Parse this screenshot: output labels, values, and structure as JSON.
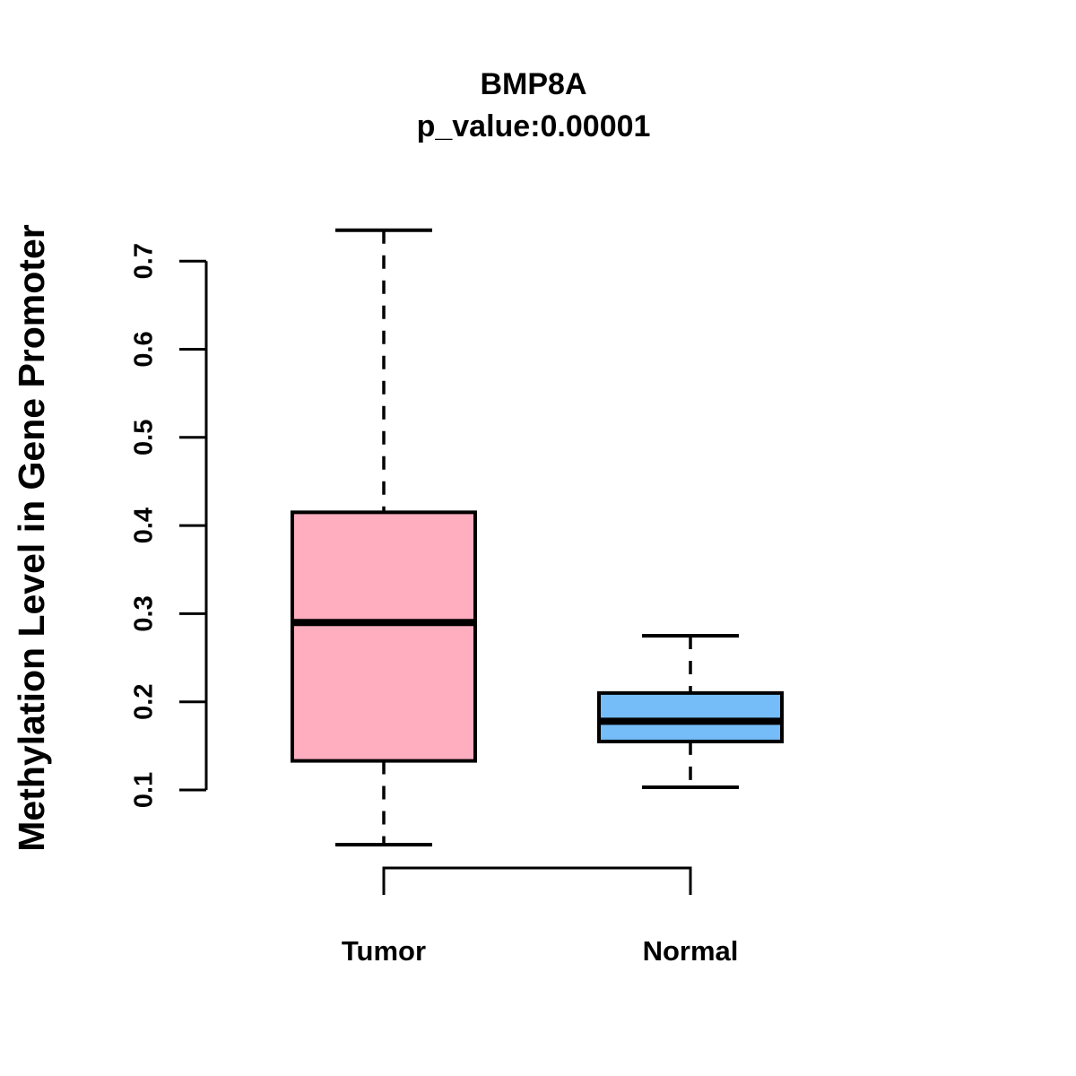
{
  "title": {
    "line1": "BMP8A",
    "line2": "p_value:0.00001"
  },
  "y_axis_label": "Methylation Level in Gene Promoter",
  "colors": {
    "tumor_fill": "#FFAEC0",
    "normal_fill": "#74BDF8",
    "line": "#000000",
    "background": "#FFFFFF"
  },
  "chart_data": {
    "type": "boxplot",
    "title": "BMP8A",
    "subtitle": "p_value:0.00001",
    "xlabel": "",
    "ylabel": "Methylation Level in Gene Promoter",
    "categories": [
      "Tumor",
      "Normal"
    ],
    "y_ticks": [
      0.1,
      0.2,
      0.3,
      0.4,
      0.5,
      0.6,
      0.7
    ],
    "ylim": [
      0.03,
      0.74
    ],
    "grid": false,
    "legend": false,
    "whisker_style": "dashed",
    "comparison_bracket": true,
    "series": [
      {
        "name": "Tumor",
        "lower_whisker": 0.038,
        "q1": 0.133,
        "median": 0.29,
        "q3": 0.415,
        "upper_whisker": 0.735,
        "fill": "#FFAEC0"
      },
      {
        "name": "Normal",
        "lower_whisker": 0.103,
        "q1": 0.155,
        "median": 0.178,
        "q3": 0.21,
        "upper_whisker": 0.275,
        "fill": "#74BDF8"
      }
    ]
  }
}
